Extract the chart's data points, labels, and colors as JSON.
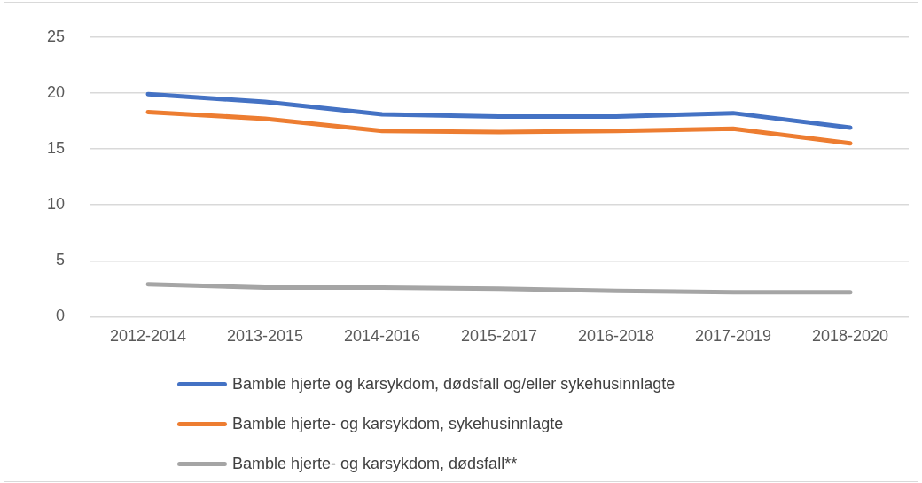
{
  "chart_data": {
    "type": "line",
    "categories": [
      "2012-2014",
      "2013-2015",
      "2014-2016",
      "2015-2017",
      "2016-2018",
      "2017-2019",
      "2018-2020"
    ],
    "series": [
      {
        "name": "Bamble hjerte og karsykdom, dødsfall og/eller sykehusinnlagte",
        "color": "#4472c4",
        "values": [
          19.9,
          19.2,
          18.1,
          17.9,
          17.9,
          18.2,
          16.9
        ]
      },
      {
        "name": "Bamble hjerte- og karsykdom, sykehusinnlagte",
        "color": "#ed7d31",
        "values": [
          18.3,
          17.7,
          16.6,
          16.5,
          16.6,
          16.8,
          15.5
        ]
      },
      {
        "name": "Bamble hjerte- og karsykdom, dødsfall**",
        "color": "#a5a5a5",
        "values": [
          2.9,
          2.6,
          2.6,
          2.5,
          2.3,
          2.2,
          2.2
        ]
      }
    ],
    "ylim": [
      0,
      25
    ],
    "yticks": [
      0,
      5,
      10,
      15,
      20,
      25
    ],
    "grid": "y",
    "legend": "bottom",
    "marker": "none",
    "line_style": "solid"
  }
}
